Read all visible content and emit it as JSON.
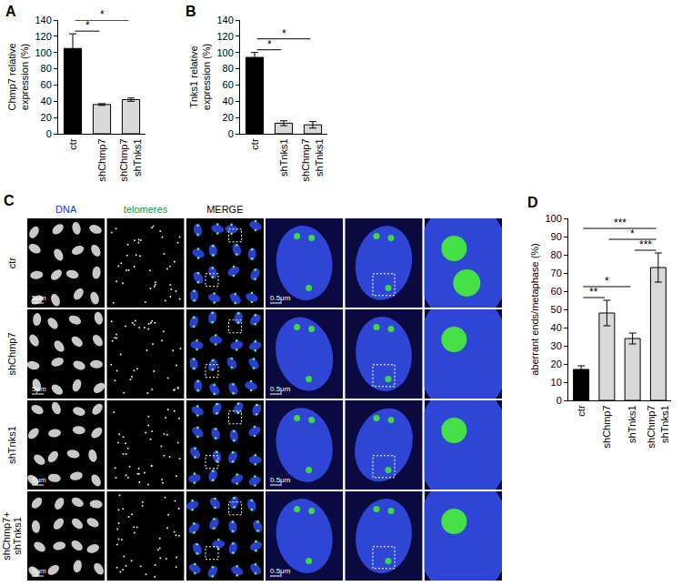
{
  "chart_data": [
    {
      "panel": "A",
      "type": "bar",
      "y_label": "Chmp7 relative expression (%)",
      "categories": [
        "ctr",
        "shChmp7",
        "shChmp7 shTnks1"
      ],
      "values": [
        105,
        36,
        42
      ],
      "errors": [
        18,
        1,
        2
      ],
      "colors": [
        "#000000",
        "#d9d9d9",
        "#d9d9d9"
      ],
      "ylim": [
        0,
        140
      ],
      "yticks": [
        0,
        20,
        40,
        60,
        80,
        100,
        120,
        140
      ],
      "significance": [
        {
          "from": 0,
          "to": 1,
          "text": "*"
        },
        {
          "from": 0,
          "to": 2,
          "text": "*"
        }
      ]
    },
    {
      "panel": "B",
      "type": "bar",
      "y_label": "Tnks1 relative expression (%)",
      "categories": [
        "ctr",
        "shTnks1",
        "shChmp7 shTnks1"
      ],
      "values": [
        94,
        13,
        11
      ],
      "errors": [
        6,
        3,
        4
      ],
      "colors": [
        "#000000",
        "#d9d9d9",
        "#d9d9d9"
      ],
      "ylim": [
        0,
        140
      ],
      "yticks": [
        0,
        20,
        40,
        60,
        80,
        100,
        120,
        140
      ],
      "significance": [
        {
          "from": 0,
          "to": 1,
          "text": "*"
        },
        {
          "from": 0,
          "to": 2,
          "text": "*"
        }
      ]
    },
    {
      "panel": "D",
      "type": "bar",
      "y_label": "aberrant ends/metaphase (%)",
      "categories": [
        "ctr",
        "shChmp7",
        "shTnks1",
        "shChmp7 shTnks1"
      ],
      "values": [
        17,
        48,
        34,
        73
      ],
      "errors": [
        2,
        7,
        3,
        8
      ],
      "colors": [
        "#000000",
        "#d9d9d9",
        "#d9d9d9",
        "#d9d9d9"
      ],
      "ylim": [
        0,
        100
      ],
      "yticks": [
        0,
        10,
        20,
        30,
        40,
        50,
        60,
        70,
        80,
        90,
        100
      ],
      "significance": [
        {
          "from": 0,
          "to": 1,
          "text": "**"
        },
        {
          "from": 0,
          "to": 2,
          "text": "*"
        },
        {
          "from": 0,
          "to": 3,
          "text": "***"
        },
        {
          "from": 1,
          "to": 3,
          "text": "*"
        },
        {
          "from": 2,
          "to": 3,
          "text": "***"
        }
      ]
    }
  ],
  "panel_c": {
    "panel": "C",
    "columns": [
      "DNA",
      "telomeres",
      "MERGE"
    ],
    "rows": [
      "ctr",
      "shChmp7",
      "shTnks1",
      "shChmp7+ shTnks1"
    ],
    "scale_bars": {
      "overview": "5μm",
      "zoom": "0.5μm"
    }
  }
}
